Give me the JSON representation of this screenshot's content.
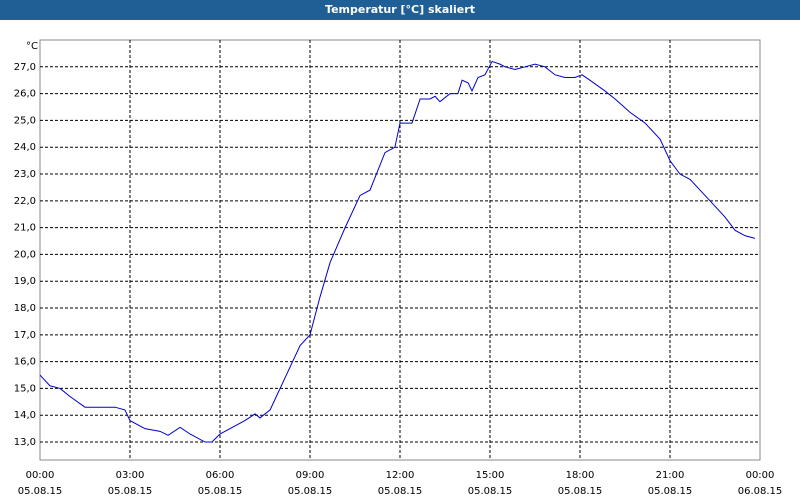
{
  "chart_data": {
    "type": "line",
    "title": "Temperatur [°C] skaliert",
    "y_unit": "°C",
    "x": [
      0,
      0.33,
      0.67,
      1,
      1.5,
      1.83,
      2.5,
      2.83,
      3,
      3.5,
      4,
      4.27,
      4.67,
      5,
      5.5,
      5.73,
      6,
      6.83,
      7.17,
      7.33,
      7.67,
      8.17,
      8.67,
      9,
      9.33,
      9.67,
      10.17,
      10.67,
      11,
      11.5,
      11.83,
      12,
      12.4,
      12.67,
      13,
      13.17,
      13.33,
      13.67,
      13.93,
      14.07,
      14.27,
      14.4,
      14.6,
      14.83,
      15.07,
      15.33,
      15.5,
      15.83,
      16.17,
      16.5,
      16.83,
      17.17,
      17.5,
      17.83,
      18.07,
      18.33,
      18.83,
      19.17,
      19.67,
      20.17,
      20.67,
      21,
      21.33,
      21.67,
      22,
      22.5,
      22.83,
      23.17,
      23.5,
      23.83
    ],
    "series": [
      {
        "name": "Temperatur",
        "color": "#0000cc",
        "values": [
          15.5,
          15.1,
          15.0,
          14.7,
          14.3,
          14.3,
          14.3,
          14.2,
          13.8,
          13.5,
          13.4,
          13.25,
          13.55,
          13.3,
          13.0,
          13.0,
          13.3,
          13.8,
          14.05,
          13.9,
          14.2,
          15.4,
          16.6,
          17.0,
          18.4,
          19.7,
          21.0,
          22.2,
          22.4,
          23.8,
          24.0,
          24.9,
          24.9,
          25.8,
          25.8,
          25.9,
          25.7,
          26.0,
          26.0,
          26.5,
          26.4,
          26.1,
          26.6,
          26.7,
          27.2,
          27.1,
          27.0,
          26.9,
          27.0,
          27.1,
          27.0,
          26.7,
          26.6,
          26.6,
          26.7,
          26.5,
          26.1,
          25.8,
          25.3,
          24.9,
          24.3,
          23.5,
          23.0,
          22.8,
          22.4,
          21.8,
          21.4,
          20.9,
          20.7,
          20.6
        ]
      }
    ],
    "xlim": [
      0,
      24
    ],
    "xticks": [
      {
        "value": 0,
        "label": "00:00",
        "date": "05.08.15"
      },
      {
        "value": 3,
        "label": "03:00",
        "date": "05.08.15"
      },
      {
        "value": 6,
        "label": "06:00",
        "date": "05.08.15"
      },
      {
        "value": 9,
        "label": "09:00",
        "date": "05.08.15"
      },
      {
        "value": 12,
        "label": "12:00",
        "date": "05.08.15"
      },
      {
        "value": 15,
        "label": "15:00",
        "date": "05.08.15"
      },
      {
        "value": 18,
        "label": "18:00",
        "date": "05.08.15"
      },
      {
        "value": 21,
        "label": "21:00",
        "date": "05.08.15"
      },
      {
        "value": 24,
        "label": "00:00",
        "date": "06.08.15"
      }
    ],
    "ylim": [
      12.33,
      28.0
    ],
    "yticks": [
      {
        "value": 13,
        "label": "13,0"
      },
      {
        "value": 14,
        "label": "14,0"
      },
      {
        "value": 15,
        "label": "15,0"
      },
      {
        "value": 16,
        "label": "16,0"
      },
      {
        "value": 17,
        "label": "17,0"
      },
      {
        "value": 18,
        "label": "18,0"
      },
      {
        "value": 19,
        "label": "19,0"
      },
      {
        "value": 20,
        "label": "20,0"
      },
      {
        "value": 21,
        "label": "21,0"
      },
      {
        "value": 22,
        "label": "22,0"
      },
      {
        "value": 23,
        "label": "23,0"
      },
      {
        "value": 24,
        "label": "24,0"
      },
      {
        "value": 25,
        "label": "25,0"
      },
      {
        "value": 26,
        "label": "26,0"
      },
      {
        "value": 27,
        "label": "27,0"
      }
    ],
    "grid": true
  }
}
